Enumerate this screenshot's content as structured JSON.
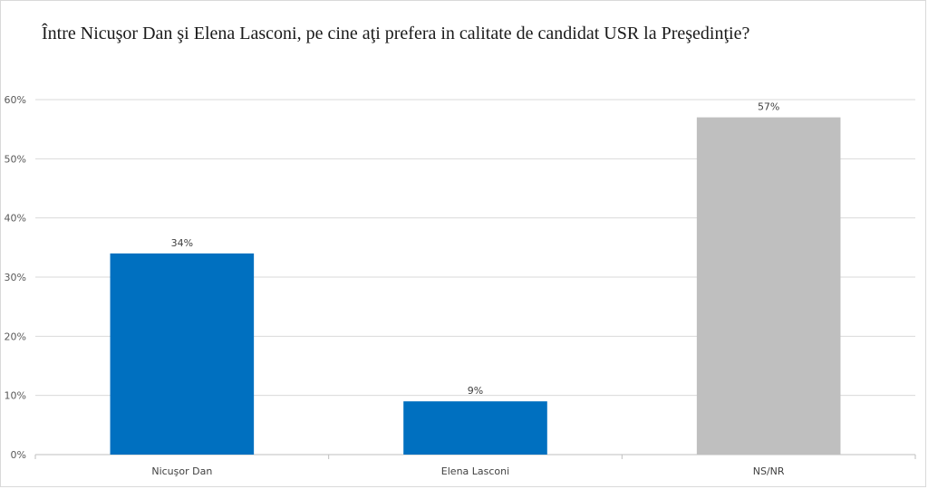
{
  "chart_data": {
    "type": "bar",
    "title": "Între Nicuşor Dan şi Elena Lasconi, pe cine aţi prefera in calitate de candidat USR la Preşedinţie?",
    "categories": [
      "Nicuşor Dan",
      "Elena Lasconi",
      "NS/NR"
    ],
    "values": [
      34,
      9,
      57
    ],
    "data_labels": [
      "34%",
      "9%",
      "57%"
    ],
    "bar_colors": [
      "#0070c0",
      "#0070c0",
      "#bfbfbf"
    ],
    "ylim": [
      0,
      60
    ],
    "yticks": [
      0,
      10,
      20,
      30,
      40,
      50,
      60
    ],
    "ytick_labels": [
      "0%",
      "10%",
      "20%",
      "30%",
      "40%",
      "50%",
      "60%"
    ],
    "xlabel": "",
    "ylabel": "",
    "grid": true,
    "legend": "none"
  }
}
